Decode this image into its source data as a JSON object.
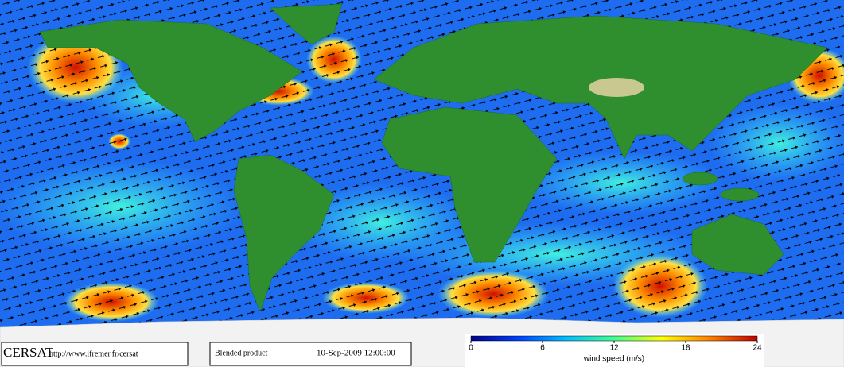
{
  "header": {
    "logo": "CERSAT",
    "url": "http://www.ifremer.fr/cersat"
  },
  "product": {
    "label": "Blended product",
    "datetime": "10-Sep-2009 12:00:00"
  },
  "colorbar": {
    "label": "wind speed (m/s)",
    "lim": [
      0,
      24
    ],
    "ticks": [
      0,
      6,
      12,
      18,
      24
    ],
    "colors": [
      "#00008b",
      "#0040ff",
      "#00c0ff",
      "#40ff90",
      "#ffff00",
      "#ff8000",
      "#c00000"
    ]
  }
}
